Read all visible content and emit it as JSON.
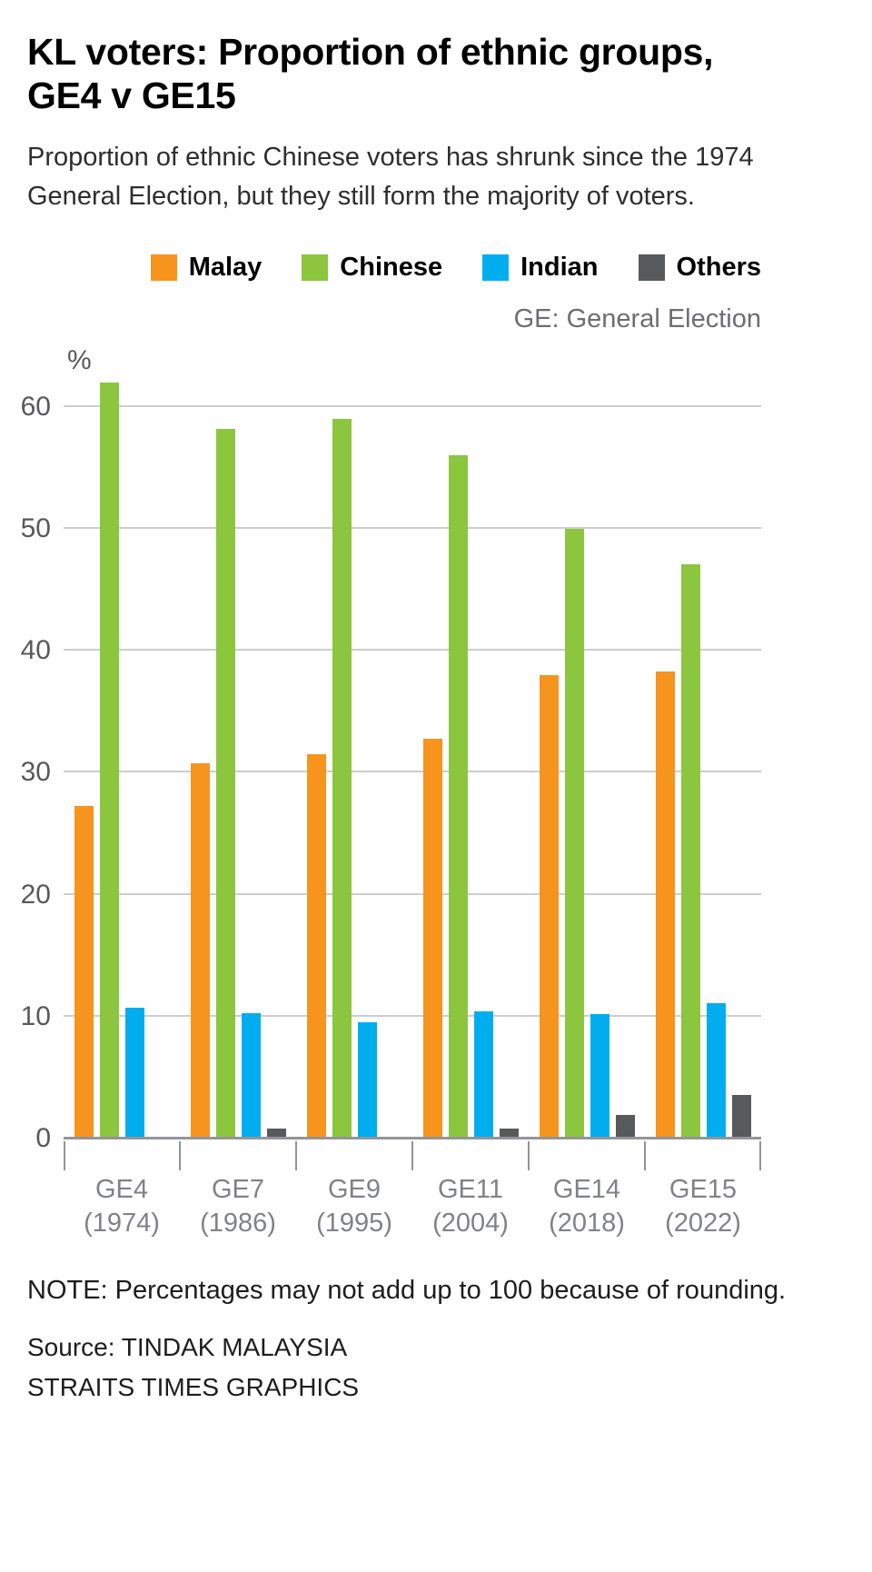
{
  "header": {
    "title_line1": "KL voters: Proportion of ethnic groups,",
    "title_line2": "GE4 v GE15",
    "subtitle": "Proportion of ethnic Chinese voters has shrunk since the 1974 General Election, but they still form the majority of voters."
  },
  "chart_data": {
    "type": "bar",
    "title": "KL voters: Proportion of ethnic groups, GE4 v GE15",
    "unit_label": "%",
    "legend_note": "GE: General Election",
    "legend_position": "top-right",
    "grid": true,
    "categories": [
      {
        "label": "GE4",
        "year": "(1974)"
      },
      {
        "label": "GE7",
        "year": "(1986)"
      },
      {
        "label": "GE9",
        "year": "(1995)"
      },
      {
        "label": "GE11",
        "year": "(2004)"
      },
      {
        "label": "GE14",
        "year": "(2018)"
      },
      {
        "label": "GE15",
        "year": "(2022)"
      }
    ],
    "series": [
      {
        "name": "Malay",
        "color": "#F7941E",
        "values": [
          27.3,
          30.8,
          31.5,
          32.8,
          38.0,
          38.3
        ]
      },
      {
        "name": "Chinese",
        "color": "#8CC63F",
        "values": [
          62.0,
          58.2,
          59.0,
          56.0,
          50.0,
          47.1
        ]
      },
      {
        "name": "Indian",
        "color": "#00AEEF",
        "values": [
          10.7,
          10.3,
          9.5,
          10.4,
          10.2,
          11.1
        ]
      },
      {
        "name": "Others",
        "color": "#58595B",
        "values": [
          0,
          0.8,
          0,
          0.8,
          1.9,
          3.6
        ]
      }
    ],
    "yticks": [
      0,
      10,
      20,
      30,
      40,
      50,
      60
    ],
    "ylim": [
      0,
      62.2
    ]
  },
  "footer": {
    "note": "NOTE: Percentages may not add up to 100 because of rounding.",
    "source": "Source: TINDAK MALAYSIA",
    "credit": "STRAITS TIMES GRAPHICS"
  }
}
